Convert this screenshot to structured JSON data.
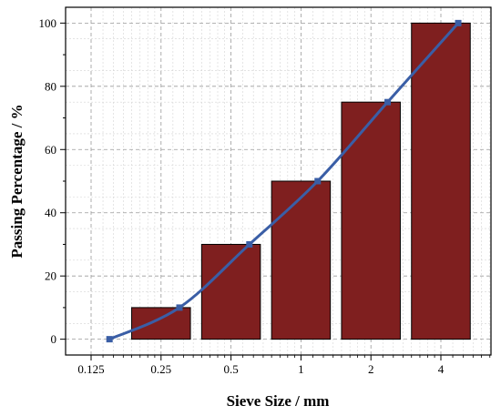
{
  "chart_data": {
    "type": "bar",
    "xscale": "log2",
    "xlabel": "Sieve Size / mm",
    "ylabel": "Passing Percentage  / %",
    "ylim": [
      -5,
      105
    ],
    "yticks": [
      0,
      20,
      40,
      60,
      80,
      100
    ],
    "xticks": [
      "0.125",
      "0.25",
      "0.5",
      "1",
      "2",
      "4"
    ],
    "grid": true,
    "bars": {
      "x": [
        0.25,
        0.5,
        1,
        2,
        4
      ],
      "values": [
        10,
        30,
        50,
        75,
        100
      ],
      "color": "#7f1f1f"
    },
    "line": {
      "x": [
        0.15,
        0.3,
        0.6,
        1.18,
        2.36,
        4.75
      ],
      "values": [
        0,
        10,
        30,
        50,
        75,
        100
      ],
      "color": "#3a5ea6"
    }
  }
}
